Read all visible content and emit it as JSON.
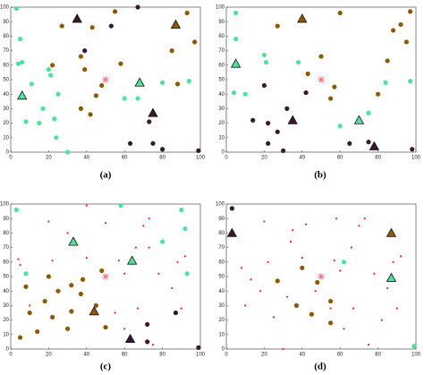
{
  "chart_data": [
    {
      "type": "scatter",
      "caption": "(a)",
      "xlim": [
        0,
        100
      ],
      "ylim": [
        0,
        100
      ],
      "xticks": [
        0,
        20,
        40,
        60,
        80,
        100
      ],
      "yticks": [
        0,
        10,
        20,
        30,
        40,
        50,
        60,
        70,
        80,
        90,
        100
      ],
      "series": [
        {
          "color": "#8b5a00",
          "marker": "circle",
          "x": [
            27,
            43,
            55,
            58,
            97,
            93,
            85,
            39,
            45,
            48,
            37,
            42,
            22,
            37,
            88
          ],
          "y": [
            87,
            86,
            97,
            61,
            76,
            96,
            70,
            57,
            39,
            46,
            30,
            26,
            60,
            66,
            47
          ]
        },
        {
          "color": "#4ee39a",
          "marker": "circle",
          "x": [
            5,
            4,
            6,
            11,
            20,
            21,
            25,
            17,
            23,
            8,
            15,
            24,
            30,
            60,
            80,
            94,
            67,
            3
          ],
          "y": [
            78,
            61,
            62,
            47,
            57,
            53,
            40,
            30,
            23,
            21,
            20,
            10,
            0,
            37,
            48,
            49,
            37,
            99
          ]
        },
        {
          "color": "#3b1830",
          "marker": "circle",
          "x": [
            39,
            53,
            73,
            63,
            75,
            80,
            99,
            67
          ],
          "y": [
            70,
            87,
            21,
            6,
            6,
            2,
            1,
            100
          ]
        },
        {
          "color": "#4ee39a",
          "marker": "triangle",
          "x": [
            6,
            68
          ],
          "y": [
            39,
            48
          ]
        },
        {
          "color": "#3b1830",
          "marker": "triangle",
          "x": [
            35,
            75
          ],
          "y": [
            92,
            27
          ]
        },
        {
          "color": "#8b5a00",
          "marker": "triangle",
          "x": [
            87
          ],
          "y": [
            88
          ]
        },
        {
          "color": "#f06070",
          "marker": "star",
          "x": [
            50
          ],
          "y": [
            50
          ]
        }
      ]
    },
    {
      "type": "scatter",
      "caption": "(b)",
      "xlim": [
        0,
        100
      ],
      "ylim": [
        0,
        100
      ],
      "xticks": [
        0,
        20,
        40,
        60,
        80,
        100
      ],
      "yticks": [
        0,
        10,
        20,
        30,
        40,
        50,
        60,
        70,
        80,
        90,
        100
      ],
      "series": [
        {
          "color": "#8b5a00",
          "marker": "circle",
          "x": [
            27,
            60,
            85,
            95,
            88,
            43,
            55,
            80,
            57,
            92,
            97,
            50
          ],
          "y": [
            87,
            96,
            63,
            76,
            84,
            54,
            37,
            40,
            45,
            88,
            97,
            66
          ]
        },
        {
          "color": "#4ee39a",
          "marker": "circle",
          "x": [
            5,
            5,
            4,
            10,
            20,
            21,
            38,
            60,
            75,
            84,
            97
          ],
          "y": [
            96,
            78,
            41,
            40,
            67,
            62,
            62,
            18,
            27,
            48,
            49
          ]
        },
        {
          "color": "#3b1830",
          "marker": "circle",
          "x": [
            20,
            42,
            14,
            22,
            27,
            32,
            22,
            30,
            65,
            75,
            98
          ],
          "y": [
            46,
            41,
            22,
            20,
            14,
            30,
            6,
            1,
            6,
            7,
            2
          ]
        },
        {
          "color": "#4ee39a",
          "marker": "triangle",
          "x": [
            5,
            70
          ],
          "y": [
            61,
            22
          ]
        },
        {
          "color": "#8b5a00",
          "marker": "triangle",
          "x": [
            40
          ],
          "y": [
            92
          ]
        },
        {
          "color": "#3b1830",
          "marker": "triangle",
          "x": [
            35,
            78
          ],
          "y": [
            22,
            4
          ]
        },
        {
          "color": "#f06070",
          "marker": "star",
          "x": [
            50
          ],
          "y": [
            50
          ]
        }
      ]
    },
    {
      "type": "scatter",
      "caption": "(c)",
      "xlim": [
        0,
        100
      ],
      "ylim": [
        0,
        100
      ],
      "xticks": [
        0,
        20,
        40,
        60,
        80,
        100
      ],
      "yticks": [
        0,
        10,
        20,
        30,
        40,
        50,
        60,
        70,
        80,
        90,
        100
      ],
      "series": [
        {
          "color": "#e0203a",
          "marker": "dot",
          "x": [
            20,
            30,
            40,
            50,
            70,
            73,
            5,
            22,
            34,
            40,
            57,
            66,
            73,
            88,
            92,
            78,
            60,
            55,
            67,
            10,
            85,
            90,
            60,
            75,
            4
          ],
          "y": [
            88,
            80,
            99,
            87,
            85,
            90,
            58,
            61,
            74,
            63,
            61,
            70,
            70,
            60,
            64,
            52,
            52,
            25,
            28,
            30,
            42,
            28,
            14,
            3,
            62
          ]
        },
        {
          "color": "#4ee39a",
          "marker": "circle",
          "x": [
            3,
            58,
            90,
            92,
            80,
            93,
            8
          ],
          "y": [
            96,
            99,
            96,
            83,
            74,
            52,
            52
          ]
        },
        {
          "color": "#8b5a00",
          "marker": "circle",
          "x": [
            8,
            20,
            25,
            32,
            18,
            10,
            22,
            32,
            30,
            14,
            5,
            45,
            37,
            38,
            50,
            48
          ],
          "y": [
            43,
            50,
            40,
            44,
            33,
            25,
            22,
            26,
            14,
            12,
            8,
            30,
            38,
            48,
            15,
            54
          ]
        },
        {
          "color": "#3b1830",
          "marker": "circle",
          "x": [
            72,
            72,
            87,
            99
          ],
          "y": [
            17,
            5,
            25,
            1
          ]
        },
        {
          "color": "#4ee39a",
          "marker": "triangle",
          "x": [
            33,
            64
          ],
          "y": [
            74,
            61
          ]
        },
        {
          "color": "#8b5a00",
          "marker": "triangle",
          "x": [
            44
          ],
          "y": [
            26
          ]
        },
        {
          "color": "#3b1830",
          "marker": "triangle",
          "x": [
            63
          ],
          "y": [
            7
          ]
        },
        {
          "color": "#f06070",
          "marker": "star",
          "x": [
            50
          ],
          "y": [
            50
          ]
        }
      ]
    },
    {
      "type": "scatter",
      "caption": "(d)",
      "xlim": [
        0,
        100
      ],
      "ylim": [
        0,
        100
      ],
      "xticks": [
        0,
        20,
        40,
        60,
        80,
        100
      ],
      "yticks": [
        0,
        10,
        20,
        30,
        40,
        50,
        60,
        70,
        80,
        90,
        100
      ],
      "series": [
        {
          "color": "#e0203a",
          "marker": "dot",
          "x": [
            20,
            35,
            42,
            70,
            73,
            22,
            34,
            40,
            57,
            66,
            88,
            92,
            78,
            60,
            55,
            67,
            10,
            85,
            90,
            62,
            75,
            25,
            18,
            32,
            47,
            8,
            13,
            58,
            82,
            30
          ],
          "y": [
            88,
            82,
            86,
            85,
            90,
            60,
            74,
            63,
            61,
            70,
            60,
            64,
            52,
            54,
            28,
            28,
            30,
            42,
            28,
            14,
            3,
            22,
            40,
            36,
            40,
            56,
            48,
            90,
            20,
            0
          ]
        },
        {
          "color": "#8b5a00",
          "marker": "circle",
          "x": [
            27,
            48,
            37,
            55,
            55,
            45,
            40
          ],
          "y": [
            47,
            46,
            30,
            33,
            18,
            24,
            56
          ]
        },
        {
          "color": "#3b1830",
          "marker": "circle",
          "x": [
            3
          ],
          "y": [
            97
          ]
        },
        {
          "color": "#4ee39a",
          "marker": "circle",
          "x": [
            62,
            99
          ],
          "y": [
            60,
            2
          ]
        },
        {
          "color": "#3b1830",
          "marker": "triangle",
          "x": [
            3
          ],
          "y": [
            80
          ]
        },
        {
          "color": "#8b5a00",
          "marker": "triangle",
          "x": [
            87
          ],
          "y": [
            80
          ]
        },
        {
          "color": "#4ee39a",
          "marker": "triangle",
          "x": [
            87
          ],
          "y": [
            49
          ]
        },
        {
          "color": "#f06070",
          "marker": "star",
          "x": [
            50
          ],
          "y": [
            50
          ]
        }
      ]
    }
  ]
}
